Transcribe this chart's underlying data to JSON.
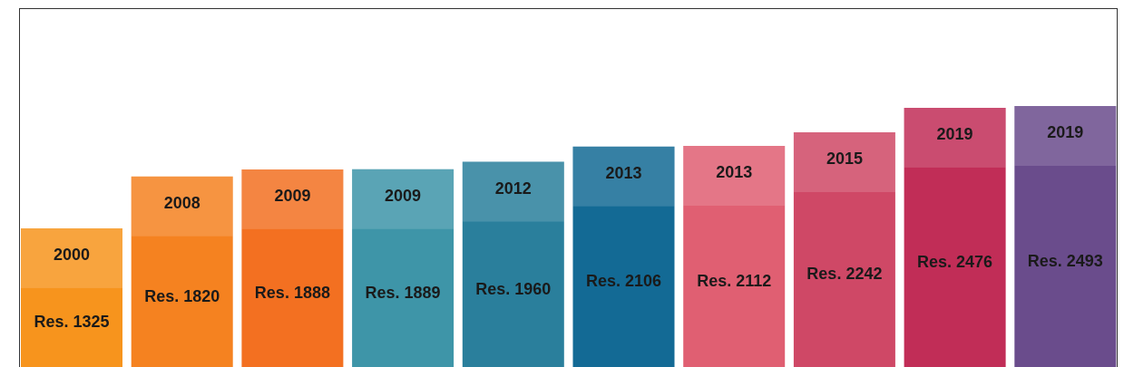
{
  "chart_data": {
    "type": "bar",
    "categories": [
      "2000",
      "2008",
      "2009",
      "2009",
      "2012",
      "2013",
      "2013",
      "2015",
      "2019",
      "2019"
    ],
    "values": [
      1325,
      1820,
      1888,
      1889,
      1960,
      2106,
      2112,
      2242,
      2476,
      2493
    ],
    "colors": [
      "#f7941d",
      "#f58220",
      "#f37021",
      "#3e95a8",
      "#2a7f9c",
      "#136a95",
      "#e05f72",
      "#cf4866",
      "#c12d57",
      "#6a4c8c"
    ],
    "value_labels": [
      "Res. 1325",
      "Res. 1820",
      "Res. 1888",
      "Res. 1889",
      "Res. 1960",
      "Res. 2106",
      "Res. 2112",
      "Res. 2242",
      "Res. 2476",
      "Res. 2493"
    ]
  }
}
